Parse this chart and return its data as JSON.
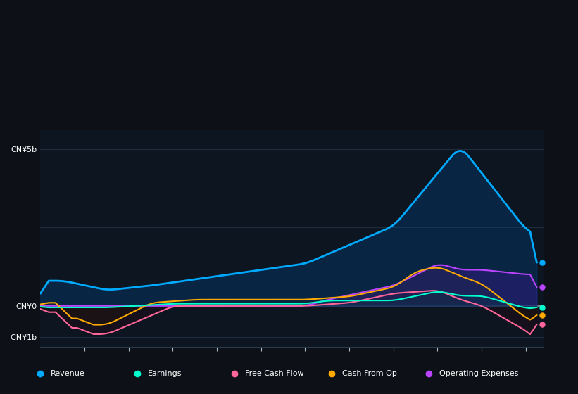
{
  "bg_color": "#0d1117",
  "chart_bg": "#0d1520",
  "grid_color": "#1e2d3d",
  "zero_line_color": "#8899aa",
  "series": {
    "Revenue": {
      "color": "#00aaff",
      "fill_alpha": 0.35,
      "fill_color": "#004488",
      "lw": 2.0
    },
    "Earnings": {
      "color": "#00ffcc",
      "fill_alpha": 0.25,
      "fill_color": "#003322",
      "lw": 1.5
    },
    "Free Cash Flow": {
      "color": "#ff6699",
      "fill_alpha": 0.25,
      "fill_color": "#330011",
      "lw": 1.5
    },
    "Cash From Op": {
      "color": "#ffaa00",
      "fill_alpha": 0.2,
      "fill_color": "#332200",
      "lw": 1.5
    },
    "Operating Expenses": {
      "color": "#bb44ff",
      "fill_alpha": 0.35,
      "fill_color": "#6600aa",
      "lw": 1.5
    }
  },
  "legend": [
    {
      "label": "Revenue",
      "color": "#00aaff"
    },
    {
      "label": "Earnings",
      "color": "#00ffcc"
    },
    {
      "label": "Free Cash Flow",
      "color": "#ff6699"
    },
    {
      "label": "Cash From Op",
      "color": "#ffaa00"
    },
    {
      "label": "Operating Expenses",
      "color": "#bb44ff"
    }
  ]
}
